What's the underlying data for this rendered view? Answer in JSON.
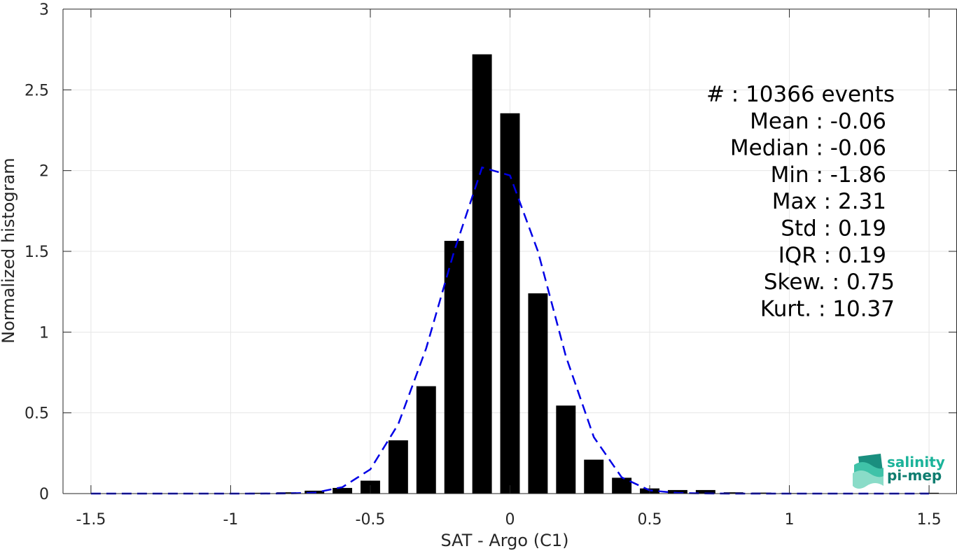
{
  "chart_data": {
    "type": "bar",
    "xlabel": "SAT - Argo (C1)",
    "ylabel": "Normalized histogram",
    "xlim": [
      -1.6,
      1.6
    ],
    "ylim": [
      0,
      3
    ],
    "grid": true,
    "xticks": [
      -1.5,
      -1,
      -0.5,
      0,
      0.5,
      1,
      1.5
    ],
    "xtick_labels": [
      "-1.5",
      "-1",
      "-0.5",
      "0",
      "0.5",
      "1",
      "1.5"
    ],
    "yticks": [
      0,
      0.5,
      1,
      1.5,
      2,
      2.5,
      3
    ],
    "ytick_labels": [
      "0",
      "0.5",
      "1",
      "1.5",
      "2",
      "2.5",
      "3"
    ],
    "bar_width": 0.07,
    "x": [
      -1.5,
      -1.4,
      -1.3,
      -1.2,
      -1.1,
      -1.0,
      -0.9,
      -0.8,
      -0.7,
      -0.6,
      -0.5,
      -0.4,
      -0.3,
      -0.2,
      -0.1,
      0.0,
      0.1,
      0.2,
      0.3,
      0.4,
      0.5,
      0.6,
      0.7,
      0.8,
      0.9,
      1.0,
      1.1,
      1.2,
      1.3,
      1.4,
      1.5
    ],
    "values": [
      0.002,
      0.001,
      0.001,
      0.001,
      0.001,
      0.002,
      0.005,
      0.008,
      0.018,
      0.035,
      0.08,
      0.33,
      0.665,
      1.565,
      2.72,
      2.355,
      1.24,
      0.545,
      0.21,
      0.098,
      0.032,
      0.022,
      0.022,
      0.008,
      0.006,
      0.003,
      0.002,
      0.002,
      0.001,
      0.001,
      0.005
    ],
    "fit_line": {
      "style": "dashed",
      "color": "#0000e6",
      "x": [
        -1.5,
        -1.4,
        -1.3,
        -1.2,
        -1.1,
        -1.0,
        -0.9,
        -0.8,
        -0.7,
        -0.6,
        -0.5,
        -0.4,
        -0.3,
        -0.2,
        -0.1,
        0.0,
        0.1,
        0.2,
        0.3,
        0.4,
        0.5,
        0.6,
        0.7,
        0.8,
        0.9,
        1.0,
        1.1,
        1.2,
        1.3,
        1.4,
        1.5
      ],
      "y": [
        0,
        0,
        0,
        0,
        0,
        0,
        0,
        0.001,
        0.005,
        0.04,
        0.15,
        0.43,
        0.9,
        1.5,
        2.02,
        1.97,
        1.5,
        0.85,
        0.35,
        0.1,
        0.02,
        0.004,
        0.001,
        0,
        0,
        0,
        0,
        0,
        0,
        0,
        0
      ]
    },
    "bar_color": "#000000",
    "annotations": [
      "#  : 10366 events",
      "Mean : -0.06",
      "Median : -0.06",
      "Min : -1.86",
      "Max : 2.31",
      "Std : 0.19",
      "IQR : 0.19",
      "Skew. : 0.75",
      "Kurt. : 10.37"
    ]
  },
  "logo": {
    "line1": "salinity",
    "line2": "pi-mep",
    "color1": "#1bb39a",
    "color2": "#0f7d70"
  }
}
